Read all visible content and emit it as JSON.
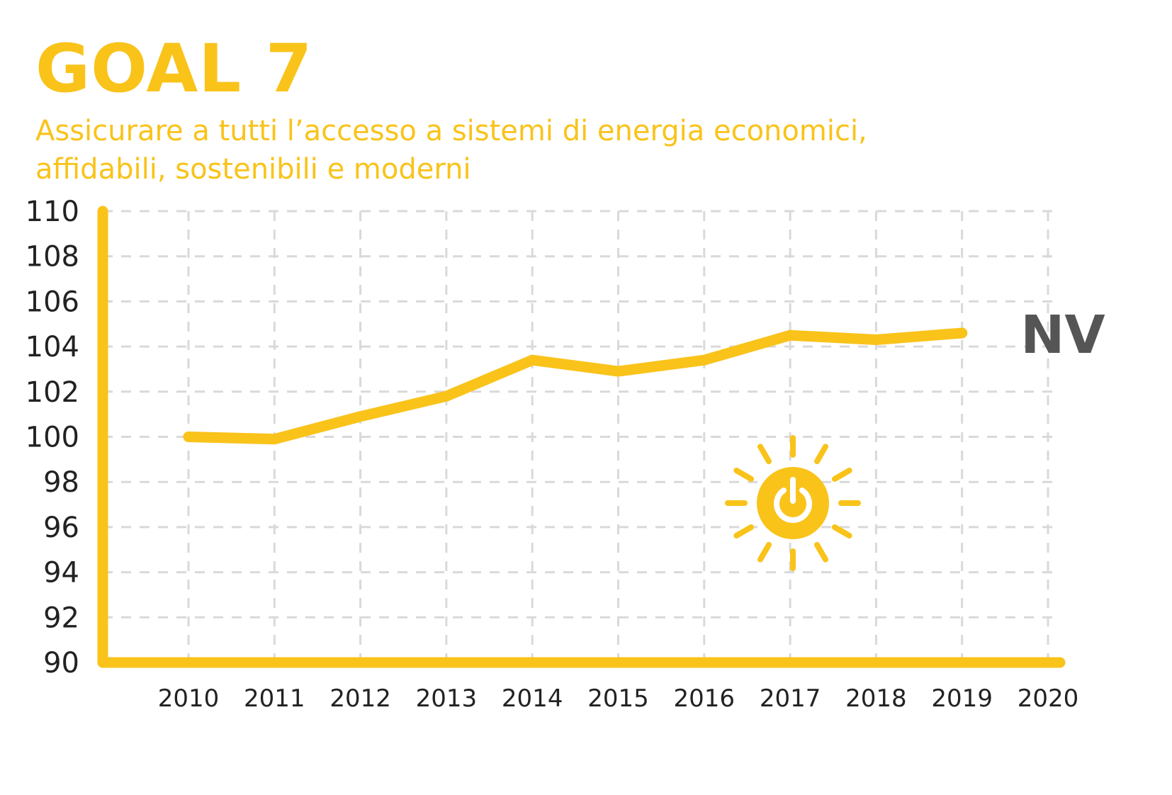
{
  "header": {
    "title": "GOAL 7",
    "subtitle_line1": "Assicurare a tutti l’accesso a sistemi di energia economici,",
    "subtitle_line2": "affidabili, sostenibili e moderni"
  },
  "colors": {
    "accent": "#F9C31A",
    "axis": "#F9C31A",
    "grid": "#D9D9D9",
    "text": "#222222",
    "nv_label": "#555555"
  },
  "icon": "sun-power-icon",
  "chart_data": {
    "type": "line",
    "title": "GOAL 7",
    "xlabel": "",
    "ylabel": "",
    "x": [
      2010,
      2011,
      2012,
      2013,
      2014,
      2015,
      2016,
      2017,
      2018,
      2019
    ],
    "x_ticks": [
      "2010",
      "2011",
      "2012",
      "2013",
      "2014",
      "2015",
      "2016",
      "2017",
      "2018",
      "2019",
      "2020"
    ],
    "y_ticks": [
      "110",
      "108",
      "106",
      "104",
      "102",
      "100",
      "98",
      "96",
      "94",
      "92",
      "90"
    ],
    "xlim": [
      2009,
      2020
    ],
    "ylim": [
      90,
      110
    ],
    "grid": true,
    "series": [
      {
        "values": [
          100.0,
          99.9,
          100.9,
          101.8,
          103.4,
          102.9,
          103.4,
          104.5,
          104.3,
          104.6
        ]
      }
    ],
    "annotation": "NV"
  }
}
